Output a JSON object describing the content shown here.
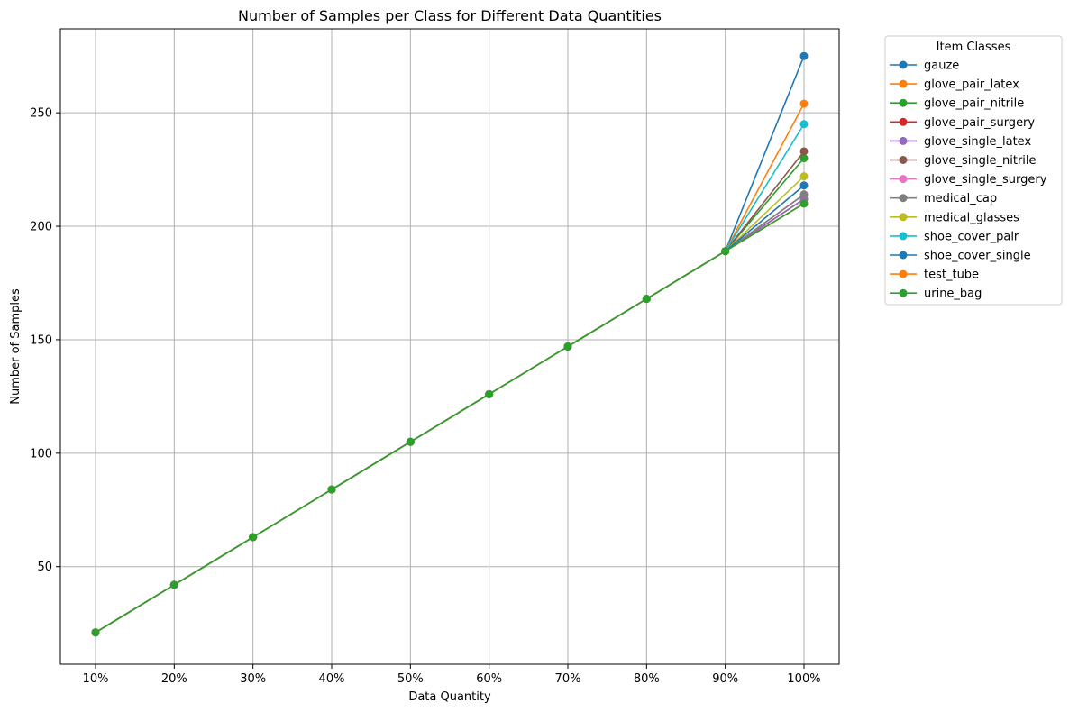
{
  "chart_data": {
    "type": "line",
    "title": "Number of Samples per Class for Different Data Quantities",
    "xlabel": "Data Quantity",
    "ylabel": "Number of Samples",
    "categories": [
      "10%",
      "20%",
      "30%",
      "40%",
      "50%",
      "60%",
      "70%",
      "80%",
      "90%",
      "100%"
    ],
    "ylim": [
      7,
      287
    ],
    "yticks": [
      50,
      100,
      150,
      200,
      250
    ],
    "grid": true,
    "legend": {
      "title": "Item Classes",
      "placement": "outside-top-right"
    },
    "series": [
      {
        "name": "gauze",
        "color": "#1f77b4",
        "values": [
          21,
          42,
          63,
          84,
          105,
          126,
          147,
          168,
          189,
          275
        ]
      },
      {
        "name": "glove_pair_latex",
        "color": "#ff7f0e",
        "values": [
          21,
          42,
          63,
          84,
          105,
          126,
          147,
          168,
          189,
          254
        ]
      },
      {
        "name": "glove_pair_nitrile",
        "color": "#2ca02c",
        "values": [
          21,
          42,
          63,
          84,
          105,
          126,
          147,
          168,
          189,
          230
        ]
      },
      {
        "name": "glove_pair_surgery",
        "color": "#d62728",
        "values": [
          21,
          42,
          63,
          84,
          105,
          126,
          147,
          168,
          189,
          212
        ]
      },
      {
        "name": "glove_single_latex",
        "color": "#9467bd",
        "values": [
          21,
          42,
          63,
          84,
          105,
          126,
          147,
          168,
          189,
          212
        ]
      },
      {
        "name": "glove_single_nitrile",
        "color": "#8c564b",
        "values": [
          21,
          42,
          63,
          84,
          105,
          126,
          147,
          168,
          189,
          233
        ]
      },
      {
        "name": "glove_single_surgery",
        "color": "#e377c2",
        "values": [
          21,
          42,
          63,
          84,
          105,
          126,
          147,
          168,
          189,
          214
        ]
      },
      {
        "name": "medical_cap",
        "color": "#7f7f7f",
        "values": [
          21,
          42,
          63,
          84,
          105,
          126,
          147,
          168,
          189,
          214
        ]
      },
      {
        "name": "medical_glasses",
        "color": "#bcbd22",
        "values": [
          21,
          42,
          63,
          84,
          105,
          126,
          147,
          168,
          189,
          222
        ]
      },
      {
        "name": "shoe_cover_pair",
        "color": "#17becf",
        "values": [
          21,
          42,
          63,
          84,
          105,
          126,
          147,
          168,
          189,
          245
        ]
      },
      {
        "name": "shoe_cover_single",
        "color": "#1f77b4",
        "values": [
          21,
          42,
          63,
          84,
          105,
          126,
          147,
          168,
          189,
          218
        ]
      },
      {
        "name": "test_tube",
        "color": "#ff7f0e",
        "values": [
          21,
          42,
          63,
          84,
          105,
          126,
          147,
          168,
          189,
          210
        ]
      },
      {
        "name": "urine_bag",
        "color": "#2ca02c",
        "values": [
          21,
          42,
          63,
          84,
          105,
          126,
          147,
          168,
          189,
          210
        ]
      }
    ]
  }
}
